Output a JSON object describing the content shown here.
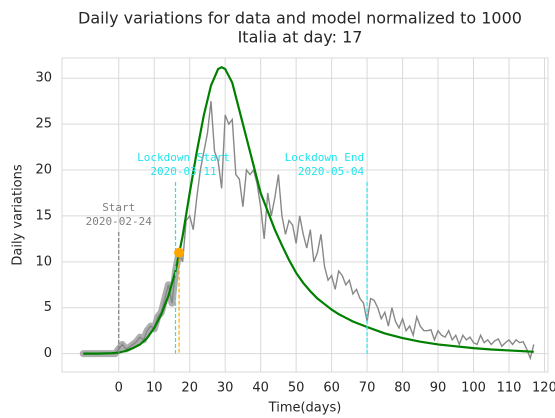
{
  "chart_data": {
    "type": "line",
    "title": [
      "Daily variations for data and model normalized to 1000",
      "Italia at day: 17"
    ],
    "xlabel": "Time(days)",
    "ylabel": "Daily variations",
    "xlim": [
      -16,
      121
    ],
    "ylim": [
      -2,
      32.2
    ],
    "xticks": [
      0,
      10,
      20,
      30,
      40,
      50,
      60,
      70,
      80,
      90,
      100,
      110,
      120
    ],
    "yticks": [
      0,
      5,
      10,
      15,
      20,
      25,
      30
    ],
    "grid": true,
    "series": [
      {
        "color": "#888888",
        "x": [
          -10,
          -9,
          -8,
          -7,
          -6,
          -5,
          -4,
          -3,
          -2,
          -1,
          0,
          1,
          2,
          3,
          4,
          5,
          6,
          7,
          8,
          9,
          10,
          11,
          12,
          13,
          14,
          15,
          16,
          17,
          18,
          19,
          20,
          21,
          22,
          23,
          24,
          25,
          26,
          27,
          28,
          29,
          30,
          31,
          32,
          33,
          34,
          35,
          36,
          37,
          38,
          39,
          40,
          41,
          42,
          43,
          44,
          45,
          46,
          47,
          48,
          49,
          50,
          51,
          52,
          53,
          54,
          55,
          56,
          57,
          58,
          59,
          60,
          61,
          62,
          63,
          64,
          65,
          66,
          67,
          68,
          69,
          70,
          71,
          72,
          73,
          74,
          75,
          76,
          77,
          78,
          79,
          80,
          81,
          82,
          83,
          84,
          85,
          86,
          87,
          88,
          89,
          90,
          91,
          92,
          93,
          94,
          95,
          96,
          97,
          98,
          99,
          100,
          101,
          102,
          103,
          104,
          105,
          106,
          107,
          108,
          109,
          110,
          111,
          112,
          113,
          114,
          115,
          116,
          117
        ],
        "values": [
          0,
          0,
          0,
          0,
          0,
          0,
          0,
          0,
          0,
          0,
          0.5,
          1,
          0.5,
          0.7,
          1,
          1.3,
          1.8,
          1.5,
          2.5,
          3,
          2.7,
          4,
          4.5,
          6,
          7.5,
          5.5,
          9,
          11,
          10,
          14.5,
          15,
          13.5,
          17,
          20,
          22,
          24,
          27.5,
          22,
          21,
          18,
          26,
          25,
          25.5,
          19.5,
          19,
          16,
          20,
          19.5,
          20,
          18.5,
          16,
          12.5,
          17.5,
          15,
          17,
          19.5,
          15,
          13,
          14.5,
          14,
          12,
          15,
          13,
          11.5,
          13.5,
          10,
          11,
          13,
          9.5,
          8,
          8.5,
          7,
          9,
          8.5,
          7.5,
          8,
          6.5,
          7,
          6,
          5.5,
          3.5,
          6,
          5.8,
          5,
          3.8,
          4.5,
          3,
          5,
          3.5,
          2.8,
          3.8,
          2.5,
          3,
          2,
          4,
          3,
          2.5,
          2.5,
          2.6,
          1.5,
          2.5,
          2,
          1.8,
          2.5,
          1.5,
          2,
          1,
          2,
          1.5,
          1.8,
          1.2,
          1,
          2,
          1.2,
          1.5,
          1,
          1.4,
          1.6,
          0.8,
          1.2,
          1.5,
          1,
          1.5,
          1.2,
          1.3,
          0.5,
          -0.5,
          1
        ]
      },
      {
        "color": "#008000",
        "x": [
          -10,
          -6,
          -2,
          0,
          2,
          4,
          6,
          8,
          10,
          12,
          14,
          16,
          18,
          20,
          22,
          24,
          26,
          28,
          29,
          30,
          32,
          34,
          36,
          38,
          40,
          42,
          44,
          46,
          48,
          50,
          52,
          54,
          56,
          58,
          60,
          62,
          64,
          66,
          68,
          70,
          75,
          80,
          85,
          90,
          95,
          100,
          105,
          110,
          115,
          117
        ],
        "values": [
          0,
          0,
          0.05,
          0.1,
          0.3,
          0.6,
          1,
          1.7,
          2.8,
          4.3,
          6.3,
          9,
          12.8,
          17.5,
          22,
          26,
          29.2,
          31,
          31.2,
          31,
          29.5,
          26.5,
          23.5,
          20.5,
          17.5,
          15.5,
          13.5,
          11.8,
          10.2,
          8.8,
          7.7,
          6.8,
          6,
          5.4,
          4.8,
          4.3,
          3.9,
          3.5,
          3.2,
          2.9,
          2.2,
          1.7,
          1.3,
          1,
          0.8,
          0.6,
          0.45,
          0.35,
          0.25,
          0.2
        ]
      }
    ],
    "point": {
      "x": 17,
      "y": 11,
      "color": "#ffa500"
    },
    "vlines": [
      {
        "x": 0,
        "color": "#808080",
        "label": [
          "Start",
          "2020-02-24"
        ]
      },
      {
        "x": 16,
        "color": "#22e5ee",
        "label": [
          "Lockdown Start",
          "2020-03-11"
        ]
      },
      {
        "x": 17,
        "color": "#ffa500"
      },
      {
        "x": 70,
        "color": "#22e5ee",
        "label": [
          "Lockdown End",
          "2020-05-04"
        ]
      }
    ]
  }
}
